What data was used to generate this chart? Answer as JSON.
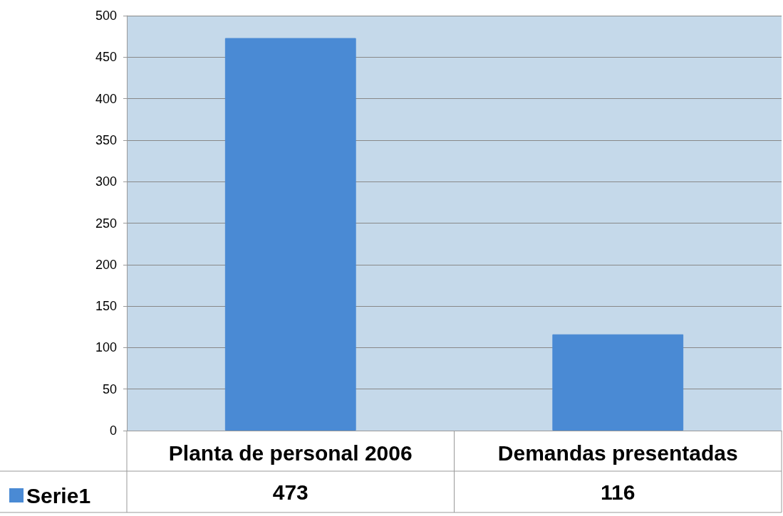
{
  "chart_data": {
    "type": "bar",
    "categories": [
      "Planta de personal 2006",
      "Demandas presentadas"
    ],
    "series": [
      {
        "name": "Serie1",
        "color": "#4a8ad4",
        "values": [
          473,
          116
        ]
      }
    ],
    "ylim": [
      0,
      500
    ],
    "yticks": [
      0,
      50,
      100,
      150,
      200,
      250,
      300,
      350,
      400,
      450,
      500
    ],
    "grid": "y",
    "legend": "bottom left",
    "data_labels": true
  }
}
